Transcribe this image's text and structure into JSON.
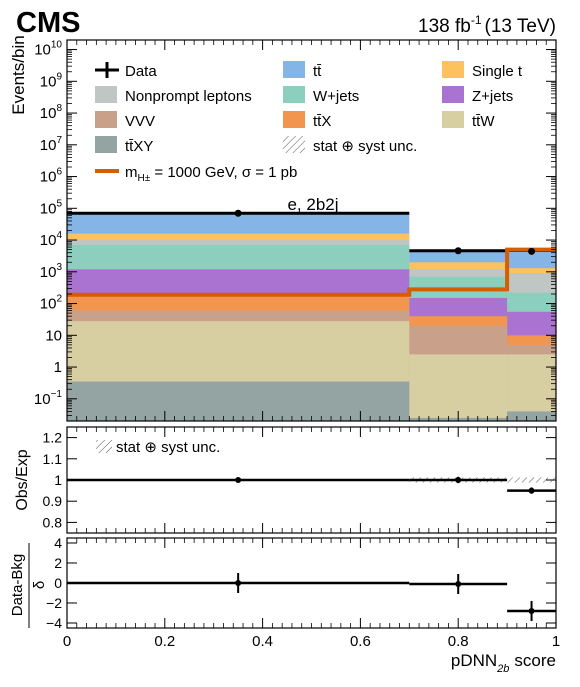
{
  "header": {
    "experiment": "CMS",
    "luminosity": "138 fb",
    "lumi_exponent": "-1",
    "energy": "(13 TeV)"
  },
  "chart_data": {
    "type": "bar",
    "category_label": "e, 2b2j",
    "xlabel": "pDNN",
    "xlabel_sub": "2b",
    "xlabel_suffix": "score",
    "xlim": [
      0,
      1
    ],
    "x_ticks": [
      "0",
      "0.2",
      "0.4",
      "0.6",
      "0.8",
      "1"
    ],
    "x_tick_values": [
      0,
      0.2,
      0.4,
      0.6,
      0.8,
      1
    ],
    "bin_edges": [
      0,
      0.7,
      0.9,
      1.0
    ],
    "main": {
      "ylabel": "Events/bin",
      "log_scale": true,
      "ylim": [
        0.02,
        20000000000
      ],
      "y_ticks": [
        {
          "value": 0.1,
          "base": "10",
          "exp": "−1"
        },
        {
          "value": 1,
          "base": "1",
          "exp": ""
        },
        {
          "value": 10,
          "base": "10",
          "exp": ""
        },
        {
          "value": 100,
          "base": "10",
          "exp": "2"
        },
        {
          "value": 1000,
          "base": "10",
          "exp": "3"
        },
        {
          "value": 10000,
          "base": "10",
          "exp": "4"
        },
        {
          "value": 100000,
          "base": "10",
          "exp": "5"
        },
        {
          "value": 1000000,
          "base": "10",
          "exp": "6"
        },
        {
          "value": 10000000,
          "base": "10",
          "exp": "7"
        },
        {
          "value": 100000000,
          "base": "10",
          "exp": "8"
        },
        {
          "value": 1000000000,
          "base": "10",
          "exp": "9"
        },
        {
          "value": 10000000000,
          "base": "10",
          "exp": "10"
        }
      ],
      "stack_order": [
        "tt̄XY",
        "tt̄W",
        "VVV",
        "tt̄X",
        "Z+jets",
        "W+jets",
        "Nonprompt leptons",
        "Single t",
        "tt̄"
      ],
      "background_stack": [
        {
          "name": "tt̄XY",
          "color": "#94a4a2",
          "cumulative_top": [
            0.35,
            0.025,
            0.04
          ]
        },
        {
          "name": "tt̄W",
          "color": "#d7cfa2",
          "cumulative_top": [
            28,
            2.5,
            2.5
          ]
        },
        {
          "name": "VVV",
          "color": "#c9a18b",
          "cumulative_top": [
            60,
            20,
            5
          ]
        },
        {
          "name": "tt̄X",
          "color": "#f2954f",
          "cumulative_top": [
            200,
            40,
            10
          ]
        },
        {
          "name": "Z+jets",
          "color": "#aa73d1",
          "cumulative_top": [
            1200,
            150,
            55
          ]
        },
        {
          "name": "W+jets",
          "color": "#8ccfbf",
          "cumulative_top": [
            7000,
            700,
            220
          ]
        },
        {
          "name": "Nonprompt leptons",
          "color": "#bfc6c3",
          "cumulative_top": [
            10000,
            1200,
            900
          ]
        },
        {
          "name": "Single t",
          "color": "#fbc25e",
          "cumulative_top": [
            16000,
            2000,
            1300
          ]
        },
        {
          "name": "tt̄",
          "color": "#85b5e6",
          "cumulative_top": [
            70000,
            4600,
            4700
          ]
        }
      ],
      "total_background": [
        70000,
        4600,
        4700
      ],
      "data": {
        "name": "Data",
        "x": [
          0.35,
          0.8,
          0.95
        ],
        "y": [
          70000,
          4600,
          4400
        ]
      },
      "signal": {
        "name": "m_H± = 1000 GeV, σ = 1 pb",
        "color": "#d45e00",
        "values": [
          190,
          280,
          5000
        ]
      }
    },
    "ratio": {
      "ylabel": "Obs/Exp",
      "ylim": [
        0.75,
        1.25
      ],
      "y_ticks": [
        "0.8",
        "0.9",
        "1",
        "1.1",
        "1.2"
      ],
      "y_tick_values": [
        0.8,
        0.9,
        1.0,
        1.1,
        1.2
      ],
      "values": [
        1.0,
        1.0,
        0.95
      ],
      "errors": [
        0.004,
        0.015,
        0.015
      ],
      "unc_label": "stat ⊕ syst unc."
    },
    "pull": {
      "ylabel": "Data-Bkg",
      "ylabel_den": "δ",
      "ylim": [
        -4.5,
        4.5
      ],
      "y_ticks": [
        "−4",
        "−2",
        "0",
        "2",
        "4"
      ],
      "y_tick_values": [
        -4,
        -2,
        0,
        2,
        4
      ],
      "values": [
        0.0,
        -0.1,
        -2.8
      ],
      "errors": [
        1,
        1,
        1
      ]
    },
    "legend": {
      "placement": "top",
      "entries": [
        {
          "label": "Data",
          "kind": "data"
        },
        {
          "label": "tt̄",
          "kind": "fill",
          "color": "#85b5e6"
        },
        {
          "label": "Single t",
          "kind": "fill",
          "color": "#fbc25e"
        },
        {
          "label": "Nonprompt leptons",
          "kind": "fill",
          "color": "#bfc6c3"
        },
        {
          "label": "W+jets",
          "kind": "fill",
          "color": "#8ccfbf"
        },
        {
          "label": "Z+jets",
          "kind": "fill",
          "color": "#aa73d1"
        },
        {
          "label": "VVV",
          "kind": "fill",
          "color": "#c9a18b"
        },
        {
          "label": "tt̄X",
          "kind": "fill",
          "color": "#f2954f"
        },
        {
          "label": "tt̄W",
          "kind": "fill",
          "color": "#d7cfa2"
        },
        {
          "label": "tt̄XY",
          "kind": "fill",
          "color": "#94a4a2"
        },
        {
          "label": "stat ⊕ syst unc.",
          "kind": "hatch"
        },
        {
          "label_pre": "m",
          "label_sub": "H±",
          "label_post": " = 1000 GeV, σ = 1 pb",
          "kind": "line",
          "color": "#d45e00"
        }
      ]
    }
  }
}
